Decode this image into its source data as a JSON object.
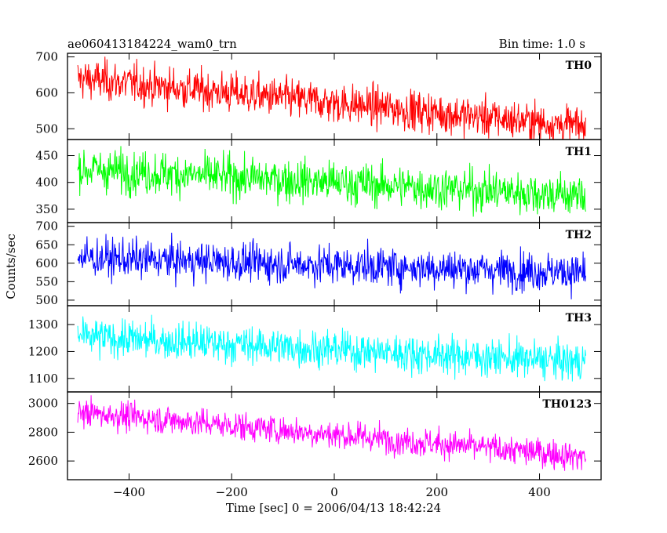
{
  "header": {
    "title": "ae060413184224_wam0_trn",
    "bin_time": "Bin time: 1.0 s"
  },
  "chart_data": {
    "type": "line",
    "title": "ae060413184224_wam0_trn",
    "subtitle": "Bin time: 1.0 s",
    "xlabel": "Time [sec] 0 = 2006/04/13 18:42:24",
    "ylabel": "Counts/sec",
    "xlim": [
      -520,
      520
    ],
    "x_range": [
      -500,
      490
    ],
    "xticks": [
      -400,
      -200,
      0,
      200,
      400
    ],
    "xtick_labels": [
      "−400",
      "−200",
      "0",
      "200",
      "400"
    ],
    "bin_time": 1.0,
    "grid": false,
    "panels": [
      {
        "name": "TH0",
        "color": "#ff0000",
        "ylim": [
          470,
          710
        ],
        "yticks": [
          500,
          600,
          700
        ],
        "trend_start": 640,
        "trend_end": 505,
        "noise_sd": 28,
        "noise_max": 70
      },
      {
        "name": "TH1",
        "color": "#00ff00",
        "ylim": [
          325,
          480
        ],
        "yticks": [
          350,
          400,
          450
        ],
        "trend_start": 425,
        "trend_end": 375,
        "noise_sd": 20,
        "noise_max": 50
      },
      {
        "name": "TH2",
        "color": "#0000ff",
        "ylim": [
          485,
          710
        ],
        "yticks": [
          500,
          550,
          600,
          650,
          700
        ],
        "trend_start": 615,
        "trend_end": 575,
        "noise_sd": 26,
        "noise_max": 75
      },
      {
        "name": "TH3",
        "color": "#00ffff",
        "ylim": [
          1050,
          1370
        ],
        "yticks": [
          1100,
          1200,
          1300
        ],
        "trend_start": 1255,
        "trend_end": 1160,
        "noise_sd": 35,
        "noise_max": 95
      },
      {
        "name": "TH0123",
        "color": "#ff00ff",
        "ylim": [
          2470,
          3080
        ],
        "yticks": [
          2600,
          2800,
          3000
        ],
        "trend_start": 2940,
        "trend_end": 2630,
        "noise_sd": 50,
        "noise_max": 130
      }
    ]
  }
}
